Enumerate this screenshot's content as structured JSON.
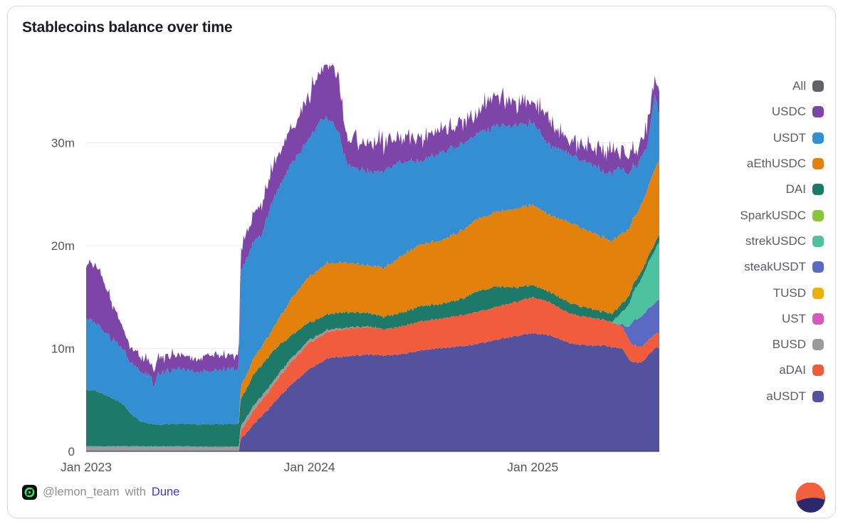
{
  "card": {
    "title": "Stablecoins balance over time"
  },
  "footer": {
    "author": "@lemon_team",
    "with_text": "with",
    "link_label": "Dune",
    "link_color": "#4134cc",
    "author_icon": "lemon-team-logo",
    "brand_icon": "dune-logo",
    "brand_colors": {
      "orange": "#F4603E",
      "navy": "#2B286B"
    }
  },
  "legend": {
    "position": "right",
    "items": [
      {
        "label": "All",
        "color": "#636366"
      },
      {
        "label": "USDC",
        "color": "#7E45A8"
      },
      {
        "label": "USDT",
        "color": "#348ED2"
      },
      {
        "label": "aEthUSDC",
        "color": "#E2820D"
      },
      {
        "label": "DAI",
        "color": "#1E7A68"
      },
      {
        "label": "SparkUSDC",
        "color": "#8CC43F"
      },
      {
        "label": "strekUSDC",
        "color": "#4CC29E"
      },
      {
        "label": "steakUSDT",
        "color": "#5A69C2"
      },
      {
        "label": "TUSD",
        "color": "#E9B10A"
      },
      {
        "label": "UST",
        "color": "#D45ABB"
      },
      {
        "label": "BUSD",
        "color": "#9B9B9B"
      },
      {
        "label": "aDAI",
        "color": "#F15C3C"
      },
      {
        "label": "aUSDT",
        "color": "#54529C"
      }
    ]
  },
  "chart_data": {
    "type": "area",
    "stacked": true,
    "title": "Stablecoins balance over time",
    "unit": "m = millions of tokens",
    "x_unit": "t = months since Jan 2023",
    "t_max": 30.8,
    "y_max": 37.6,
    "grid": "horizontal",
    "grid_color": "#ebebf0",
    "axis_label_color": "#55555a",
    "axis_line_color": "rgba(43,43,80,0.65)",
    "x_ticks": [
      {
        "label": "Jan 2023",
        "t": 0
      },
      {
        "label": "Jan 2024",
        "t": 12
      },
      {
        "label": "Jan 2025",
        "t": 24
      }
    ],
    "y_ticks": [
      {
        "label": "0",
        "value": 0
      },
      {
        "label": "10m",
        "value": 10
      },
      {
        "label": "20m",
        "value": 20
      },
      {
        "label": "30m",
        "value": 30
      }
    ],
    "series": [
      {
        "name": "aUSDT",
        "color": "#54529C",
        "points": [
          [
            0,
            0
          ],
          [
            8.2,
            0
          ],
          [
            8.3,
            1.2
          ],
          [
            9,
            2.6
          ],
          [
            10,
            4.5
          ],
          [
            11,
            6.5
          ],
          [
            12,
            8
          ],
          [
            13,
            9
          ],
          [
            14,
            9.3
          ],
          [
            15,
            9.4
          ],
          [
            16,
            9.3
          ],
          [
            17,
            9.5
          ],
          [
            18,
            9.8
          ],
          [
            19,
            10
          ],
          [
            20,
            10.2
          ],
          [
            21,
            10.4
          ],
          [
            22,
            10.8
          ],
          [
            23,
            11.2
          ],
          [
            24,
            11.5
          ],
          [
            25,
            11.2
          ],
          [
            26,
            10.5
          ],
          [
            27,
            10.3
          ],
          [
            28,
            10.2
          ],
          [
            28.8,
            10
          ],
          [
            29.3,
            8.7
          ],
          [
            29.8,
            8.6
          ],
          [
            30.2,
            9.3
          ],
          [
            30.5,
            9.9
          ],
          [
            30.8,
            10.1
          ]
        ]
      },
      {
        "name": "aDAI",
        "color": "#F15C3C",
        "points": [
          [
            0,
            0
          ],
          [
            8.2,
            0
          ],
          [
            8.3,
            0.8
          ],
          [
            9,
            1.3
          ],
          [
            10,
            1.8
          ],
          [
            11,
            2.2
          ],
          [
            12,
            2.5
          ],
          [
            13,
            2.6
          ],
          [
            14,
            2.7
          ],
          [
            16,
            2.6
          ],
          [
            18,
            2.8
          ],
          [
            20,
            3
          ],
          [
            22,
            3.2
          ],
          [
            23,
            3.3
          ],
          [
            24,
            3.5
          ],
          [
            25,
            3.2
          ],
          [
            26,
            2.9
          ],
          [
            27,
            2.7
          ],
          [
            28,
            2.5
          ],
          [
            28.8,
            2.2
          ],
          [
            29.3,
            1.7
          ],
          [
            29.8,
            1.5
          ],
          [
            30.3,
            1.4
          ],
          [
            30.8,
            1.4
          ]
        ]
      },
      {
        "name": "BUSD",
        "color": "#9B9B9B",
        "points": [
          [
            0,
            0.5
          ],
          [
            4,
            0.5
          ],
          [
            8.2,
            0.45
          ],
          [
            9,
            0.5
          ],
          [
            10,
            0.4
          ],
          [
            11,
            0.35
          ],
          [
            12,
            0.3
          ],
          [
            13,
            0.2
          ],
          [
            14,
            0.1
          ],
          [
            15,
            0.05
          ],
          [
            16,
            0
          ],
          [
            30.8,
            0
          ]
        ]
      },
      {
        "name": "steakUSDT",
        "color": "#5A69C2",
        "points": [
          [
            0,
            0
          ],
          [
            28.6,
            0
          ],
          [
            29,
            0.6
          ],
          [
            29.4,
            2.4
          ],
          [
            29.8,
            2.9
          ],
          [
            30.2,
            3.1
          ],
          [
            30.5,
            3
          ],
          [
            30.8,
            3.2
          ]
        ]
      },
      {
        "name": "strekUSDC",
        "color": "#4CC29E",
        "points": [
          [
            0,
            0
          ],
          [
            28.2,
            0
          ],
          [
            28.6,
            0.8
          ],
          [
            29,
            1.8
          ],
          [
            29.4,
            2.8
          ],
          [
            29.8,
            3.6
          ],
          [
            30.2,
            4.4
          ],
          [
            30.5,
            5
          ],
          [
            30.8,
            5.6
          ]
        ]
      },
      {
        "name": "SparkUSDC",
        "color": "#8CC43F",
        "points": [
          [
            0,
            0
          ],
          [
            30.8,
            0
          ]
        ]
      },
      {
        "name": "DAI",
        "color": "#1E7A68",
        "points": [
          [
            0,
            5.5
          ],
          [
            0.5,
            5.4
          ],
          [
            1,
            5
          ],
          [
            1.5,
            4.6
          ],
          [
            2,
            4
          ],
          [
            2.5,
            3
          ],
          [
            3,
            2.4
          ],
          [
            3.5,
            2.2
          ],
          [
            4,
            2.1
          ],
          [
            6,
            2.2
          ],
          [
            8.2,
            2.2
          ],
          [
            8.3,
            2.6
          ],
          [
            9,
            3
          ],
          [
            10,
            3
          ],
          [
            11,
            2.2
          ],
          [
            12,
            1.7
          ],
          [
            13,
            1.5
          ],
          [
            14,
            1.5
          ],
          [
            15,
            1.35
          ],
          [
            16,
            1.2
          ],
          [
            17,
            1.3
          ],
          [
            18,
            1.5
          ],
          [
            19,
            1.4
          ],
          [
            20,
            1.5
          ],
          [
            21,
            2
          ],
          [
            22,
            2
          ],
          [
            23,
            1.4
          ],
          [
            24,
            1.2
          ],
          [
            25,
            1
          ],
          [
            26,
            1
          ],
          [
            27,
            0.9
          ],
          [
            28,
            0.8
          ],
          [
            29,
            0.8
          ],
          [
            30,
            0.7
          ],
          [
            30.8,
            0.7
          ]
        ]
      },
      {
        "name": "TUSD",
        "color": "#E9B10A",
        "points": [
          [
            0,
            0
          ],
          [
            30.8,
            0
          ]
        ]
      },
      {
        "name": "UST",
        "color": "#D45ABB",
        "points": [
          [
            0,
            0
          ],
          [
            30.8,
            0
          ]
        ]
      },
      {
        "name": "aEthUSDC",
        "color": "#E2820D",
        "points": [
          [
            0,
            0
          ],
          [
            8.2,
            0
          ],
          [
            8.3,
            1.2
          ],
          [
            9,
            1.6
          ],
          [
            10,
            2.2
          ],
          [
            11,
            3.5
          ],
          [
            12,
            4.5
          ],
          [
            13,
            5
          ],
          [
            14,
            4.8
          ],
          [
            15,
            4.6
          ],
          [
            16,
            4.8
          ],
          [
            17,
            5.5
          ],
          [
            18,
            6
          ],
          [
            19,
            6.2
          ],
          [
            20,
            6.5
          ],
          [
            21,
            7
          ],
          [
            22,
            7.3
          ],
          [
            23,
            7.6
          ],
          [
            24,
            7.8
          ],
          [
            25,
            7.5
          ],
          [
            26,
            7.8
          ],
          [
            27,
            7.5
          ],
          [
            28,
            7.2
          ],
          [
            28.6,
            7
          ],
          [
            29.2,
            6.4
          ],
          [
            29.6,
            6.3
          ],
          [
            30,
            6.6
          ],
          [
            30.4,
            7.1
          ],
          [
            30.8,
            7.4
          ]
        ]
      },
      {
        "name": "USDT",
        "color": "#348ED2",
        "points": [
          [
            0,
            7
          ],
          [
            0.5,
            6.8
          ],
          [
            1,
            6
          ],
          [
            1.5,
            5.6
          ],
          [
            2,
            5.2
          ],
          [
            2.5,
            5
          ],
          [
            3,
            4.9
          ],
          [
            3.5,
            4.8
          ],
          [
            3.6,
            3.6
          ],
          [
            3.8,
            4.8
          ],
          [
            4,
            5
          ],
          [
            5,
            5.2
          ],
          [
            6,
            5.2
          ],
          [
            7,
            5.2
          ],
          [
            8.2,
            5.2
          ],
          [
            8.3,
            11
          ],
          [
            9,
            11.5
          ],
          [
            9.5,
            11
          ],
          [
            10,
            12.5
          ],
          [
            11,
            13
          ],
          [
            12,
            13.5
          ],
          [
            12.5,
            14.5
          ],
          [
            13,
            14
          ],
          [
            13.5,
            13
          ],
          [
            14,
            9.5
          ],
          [
            15,
            9.2
          ],
          [
            16,
            9.4
          ],
          [
            17,
            9
          ],
          [
            18,
            8.2
          ],
          [
            19,
            8.5
          ],
          [
            20,
            8.3
          ],
          [
            21,
            8.4
          ],
          [
            22,
            8.3
          ],
          [
            23,
            8
          ],
          [
            24,
            8.1
          ],
          [
            25,
            6.6
          ],
          [
            26,
            6.6
          ],
          [
            27,
            6.8
          ],
          [
            28,
            6.3
          ],
          [
            28.5,
            6.6
          ],
          [
            29,
            5.6
          ],
          [
            29.4,
            5
          ],
          [
            29.8,
            4.5
          ],
          [
            30.2,
            4.4
          ],
          [
            30.55,
            7.3
          ],
          [
            30.8,
            4.4
          ]
        ]
      },
      {
        "name": "USDC",
        "color": "#7E45A8",
        "points": [
          [
            0,
            5.3
          ],
          [
            0.7,
            5.5
          ],
          [
            1,
            4.5
          ],
          [
            1.5,
            3.2
          ],
          [
            2,
            1.8
          ],
          [
            2.5,
            1.6
          ],
          [
            3,
            1.5
          ],
          [
            3.6,
            1.2
          ],
          [
            4,
            1.5
          ],
          [
            5,
            1.5
          ],
          [
            6,
            1.4
          ],
          [
            7,
            1.4
          ],
          [
            8.2,
            1.4
          ],
          [
            8.3,
            2.2
          ],
          [
            9,
            2.5
          ],
          [
            10,
            3
          ],
          [
            11,
            3.5
          ],
          [
            12,
            4
          ],
          [
            12.5,
            4.5
          ],
          [
            13,
            5
          ],
          [
            13.5,
            5.2
          ],
          [
            14,
            3
          ],
          [
            15,
            2.6
          ],
          [
            16,
            2.4
          ],
          [
            17,
            2.5
          ],
          [
            18,
            2.2
          ],
          [
            19,
            2
          ],
          [
            20,
            2.2
          ],
          [
            21,
            2.3
          ],
          [
            22,
            2.4
          ],
          [
            23,
            2.3
          ],
          [
            24,
            2.2
          ],
          [
            25,
            1.8
          ],
          [
            26,
            1.7
          ],
          [
            27,
            1.6
          ],
          [
            28,
            1.6
          ],
          [
            28.5,
            1.8
          ],
          [
            29,
            1.6
          ],
          [
            29.5,
            1.5
          ],
          [
            30,
            1.5
          ],
          [
            30.55,
            2
          ],
          [
            30.8,
            1.5
          ]
        ]
      }
    ]
  }
}
